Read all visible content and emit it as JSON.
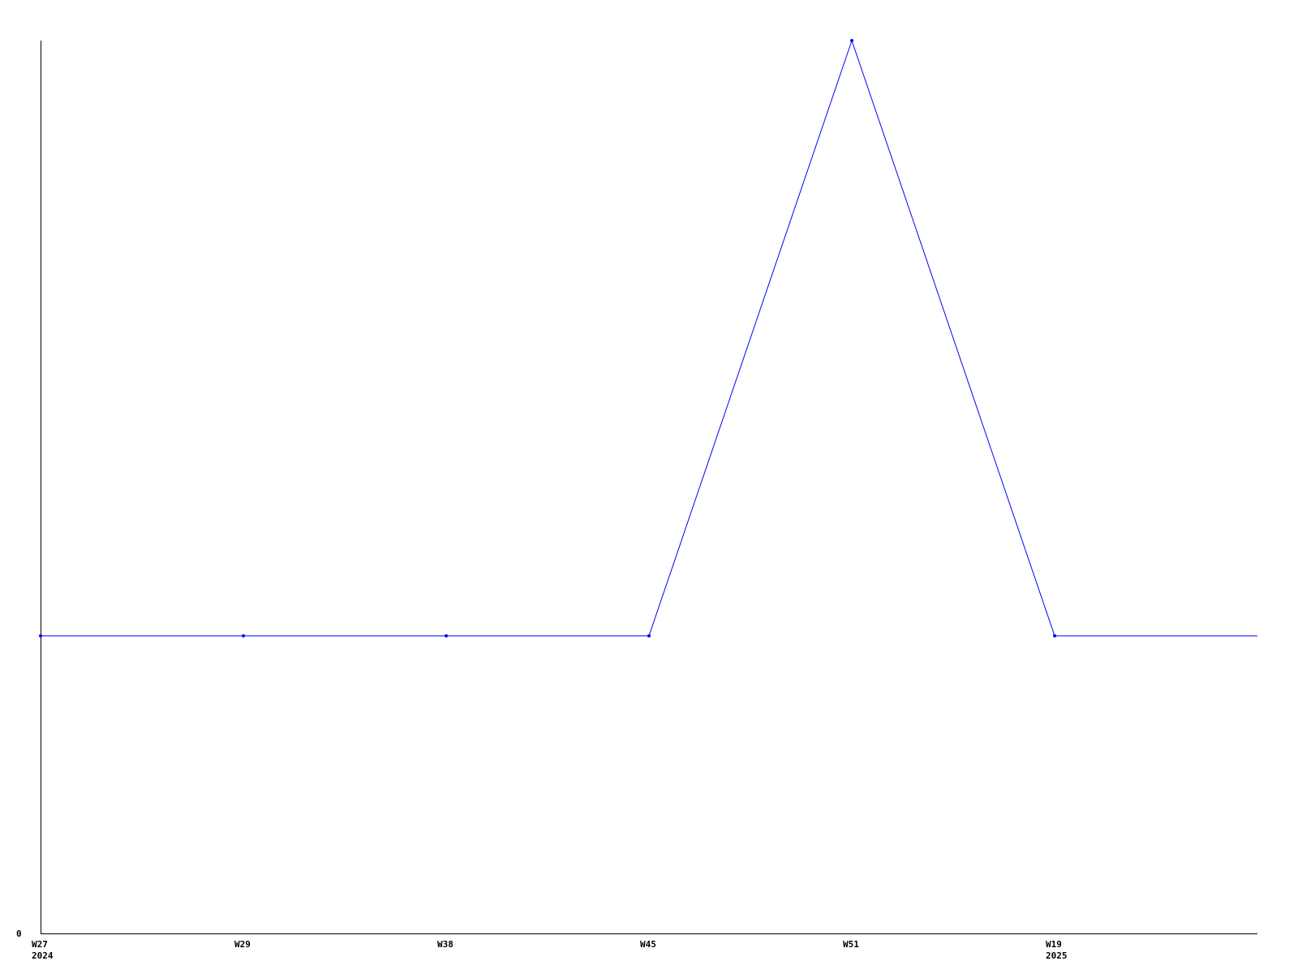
{
  "chart_data": {
    "type": "line",
    "title": "",
    "xlabel": "",
    "ylabel": "",
    "categories": [
      {
        "week": "W27",
        "year": "2024"
      },
      {
        "week": "W29",
        "year": ""
      },
      {
        "week": "W38",
        "year": ""
      },
      {
        "week": "W45",
        "year": ""
      },
      {
        "week": "W51",
        "year": ""
      },
      {
        "week": "W19",
        "year": "2025"
      }
    ],
    "series": [
      {
        "values": [
          1,
          1,
          1,
          1,
          3,
          1
        ],
        "color": "#0000ff"
      }
    ],
    "ylim": [
      0,
      3
    ],
    "y_tick_labels": [
      "0"
    ],
    "grid": false,
    "legend": "none",
    "note_on_values": "y values estimated relative to the only labeled tick (0); peak is 3x the baseline level"
  }
}
